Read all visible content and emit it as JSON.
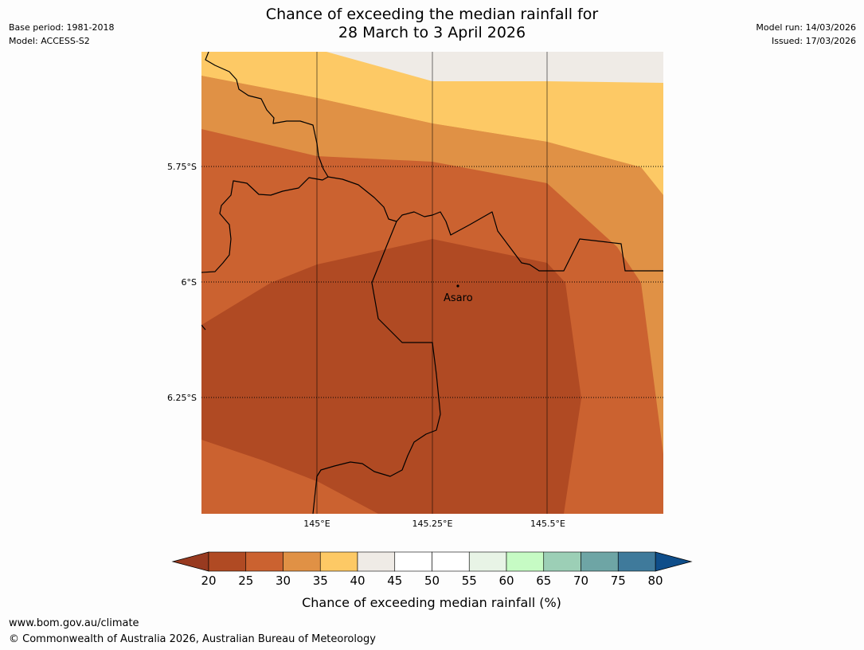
{
  "header": {
    "title_line1": "Chance of exceeding the median rainfall for",
    "title_line2": "28 March to 3 April 2026",
    "base_period": "Base period: 1981-2018",
    "model": "Model: ACCESS-S2",
    "model_run": "Model run: 14/03/2026",
    "issued": "Issued: 17/03/2026"
  },
  "map": {
    "latitude_labels": [
      "5.75°S",
      "6°S",
      "6.25°S"
    ],
    "longitude_labels": [
      "145°E",
      "145.25°E",
      "145.5°E"
    ],
    "place_label": "Asaro",
    "colors": {
      "c20_25": "#b04a23",
      "c25_30": "#cb6230",
      "c30_35": "#e09145",
      "c35_40": "#fdc965",
      "c40_45": "#efebe6",
      "border": "#000000",
      "grid": "#000000"
    }
  },
  "legend": {
    "title": "Chance of exceeding median rainfall (%)",
    "ticks": [
      "20",
      "25",
      "30",
      "35",
      "40",
      "45",
      "50",
      "55",
      "60",
      "65",
      "70",
      "75",
      "80"
    ],
    "under_color": "#983a20",
    "over_color": "#0f4e8a",
    "colors": [
      "#b04a23",
      "#cb6230",
      "#e09145",
      "#fdc965",
      "#efebe6",
      "#ffffff",
      "#ffffff",
      "#e8f4e6",
      "#c6fbc4",
      "#9ccfb6",
      "#6ea5a5",
      "#3f7a9b"
    ]
  },
  "footer": {
    "url": "www.bom.gov.au/climate",
    "copyright": "© Commonwealth of Australia 2026, Australian Bureau of Meteorology"
  }
}
